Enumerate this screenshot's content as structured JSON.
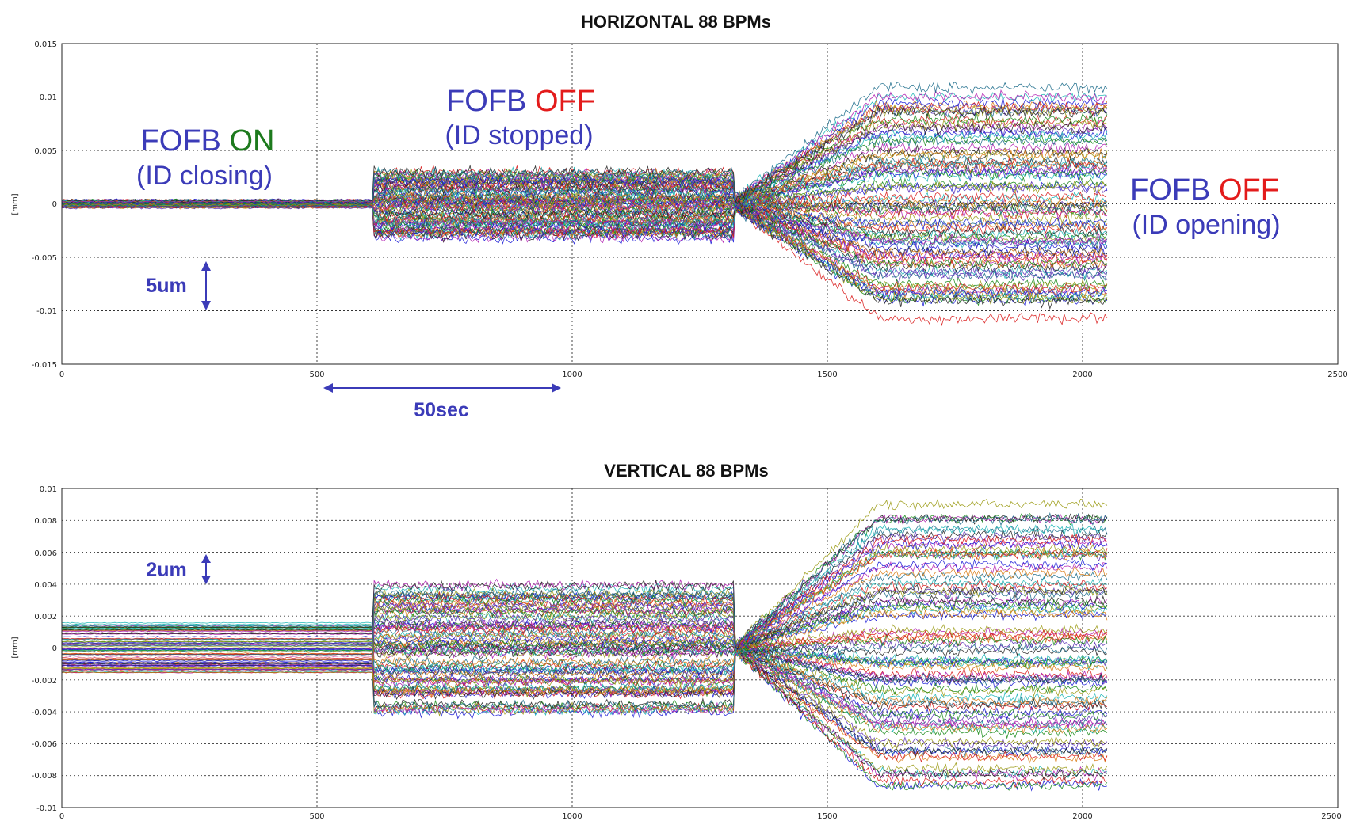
{
  "colors": {
    "annotation_blue": "#3b3bb8",
    "annotation_green": "#1d7a1d",
    "annotation_red": "#e31b1b",
    "series_palette": [
      "#1a1ad6",
      "#178a17",
      "#d91a1a",
      "#18b5b5",
      "#b01bb0",
      "#9a9a12",
      "#222222",
      "#1a6a8a",
      "#d97a12",
      "#5a2db5"
    ]
  },
  "chart_data": [
    {
      "type": "line",
      "title": "HORIZONTAL 88 BPMs",
      "ylabel": "[mm]",
      "xlim": [
        0,
        2500
      ],
      "ylim": [
        -0.015,
        0.015
      ],
      "x_ticks": [
        "0",
        "500",
        "1000",
        "1500",
        "2000",
        "2500"
      ],
      "y_ticks": [
        "0.015",
        "0.01",
        "0.005",
        "0",
        "-0.005",
        "-0.01",
        "-0.015"
      ],
      "grid": true,
      "series_count": 88,
      "x_end": 2048,
      "phases": [
        {
          "x_start": 0,
          "x_end": 610,
          "spread": 0.0004,
          "noise": 0.0001
        },
        {
          "x_start": 610,
          "x_end": 1320,
          "spread": 0.003,
          "noise": 0.0005
        },
        {
          "x_start": 1320,
          "x_end": 1600,
          "spread_start": 0.0005,
          "spread_end": 0.01,
          "noise": 0.0005
        },
        {
          "x_start": 1600,
          "x_end": 2048,
          "spread": 0.01,
          "noise": 0.0005
        }
      ],
      "annotations": {
        "phase1_line1_a": "FOFB",
        "phase1_line1_b": "ON",
        "phase1_line2": "(ID closing)",
        "phase2_line1_a": "FOFB",
        "phase2_line1_b": "OFF",
        "phase2_line2": "(ID stopped)",
        "phase3_line1_a": "FOFB",
        "phase3_line1_b": "OFF",
        "phase3_line2": "(ID opening)",
        "scale_label": "5um",
        "time_scale_label": "50sec"
      }
    },
    {
      "type": "line",
      "title": "VERTICAL 88 BPMs",
      "ylabel": "[mm]",
      "xlim": [
        0,
        2500
      ],
      "ylim": [
        -0.01,
        0.01
      ],
      "x_ticks": [
        "0",
        "500",
        "1000",
        "1500",
        "2000",
        "2500"
      ],
      "y_ticks": [
        "0.01",
        "0.008",
        "0.006",
        "0.004",
        "0.002",
        "0",
        "-0.002",
        "-0.004",
        "-0.006",
        "-0.008",
        "-0.01"
      ],
      "grid": true,
      "series_count": 88,
      "x_end": 2048,
      "phases": [
        {
          "x_start": 0,
          "x_end": 610,
          "spread": 0.0016,
          "noise": 3e-05
        },
        {
          "x_start": 610,
          "x_end": 1320,
          "spread": 0.0038,
          "noise": 0.0003
        },
        {
          "x_start": 1320,
          "x_end": 1600,
          "spread_start": 0.0002,
          "spread_end": 0.0085,
          "noise": 0.0003
        },
        {
          "x_start": 1600,
          "x_end": 2048,
          "spread": 0.0085,
          "noise": 0.0003
        }
      ],
      "annotations": {
        "scale_label": "2um"
      }
    }
  ]
}
